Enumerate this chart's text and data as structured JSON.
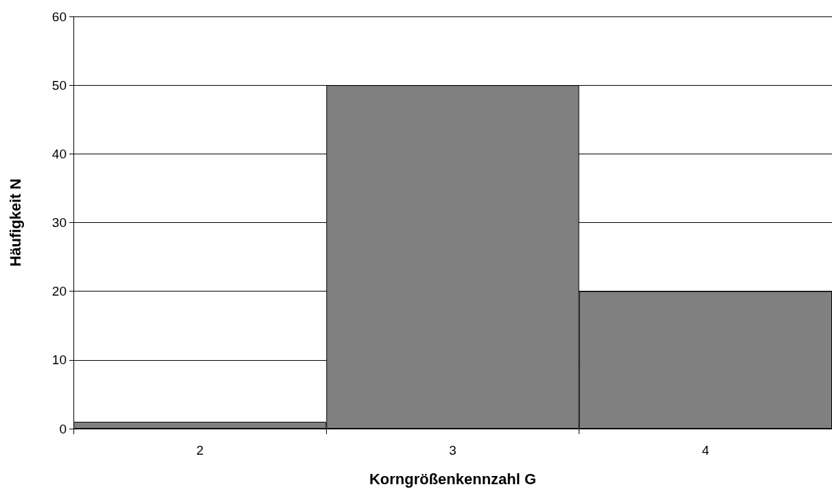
{
  "chart_data": {
    "type": "bar",
    "xlabel": "Korngrößenkennzahl G",
    "ylabel": "Häufigkeit N",
    "categories": [
      "2",
      "3",
      "4"
    ],
    "values": [
      1,
      50,
      20
    ],
    "color": "#808080",
    "ylim": [
      0,
      60
    ],
    "yticks": [
      0,
      10,
      20,
      30,
      40,
      50,
      60
    ],
    "grid": "y"
  }
}
